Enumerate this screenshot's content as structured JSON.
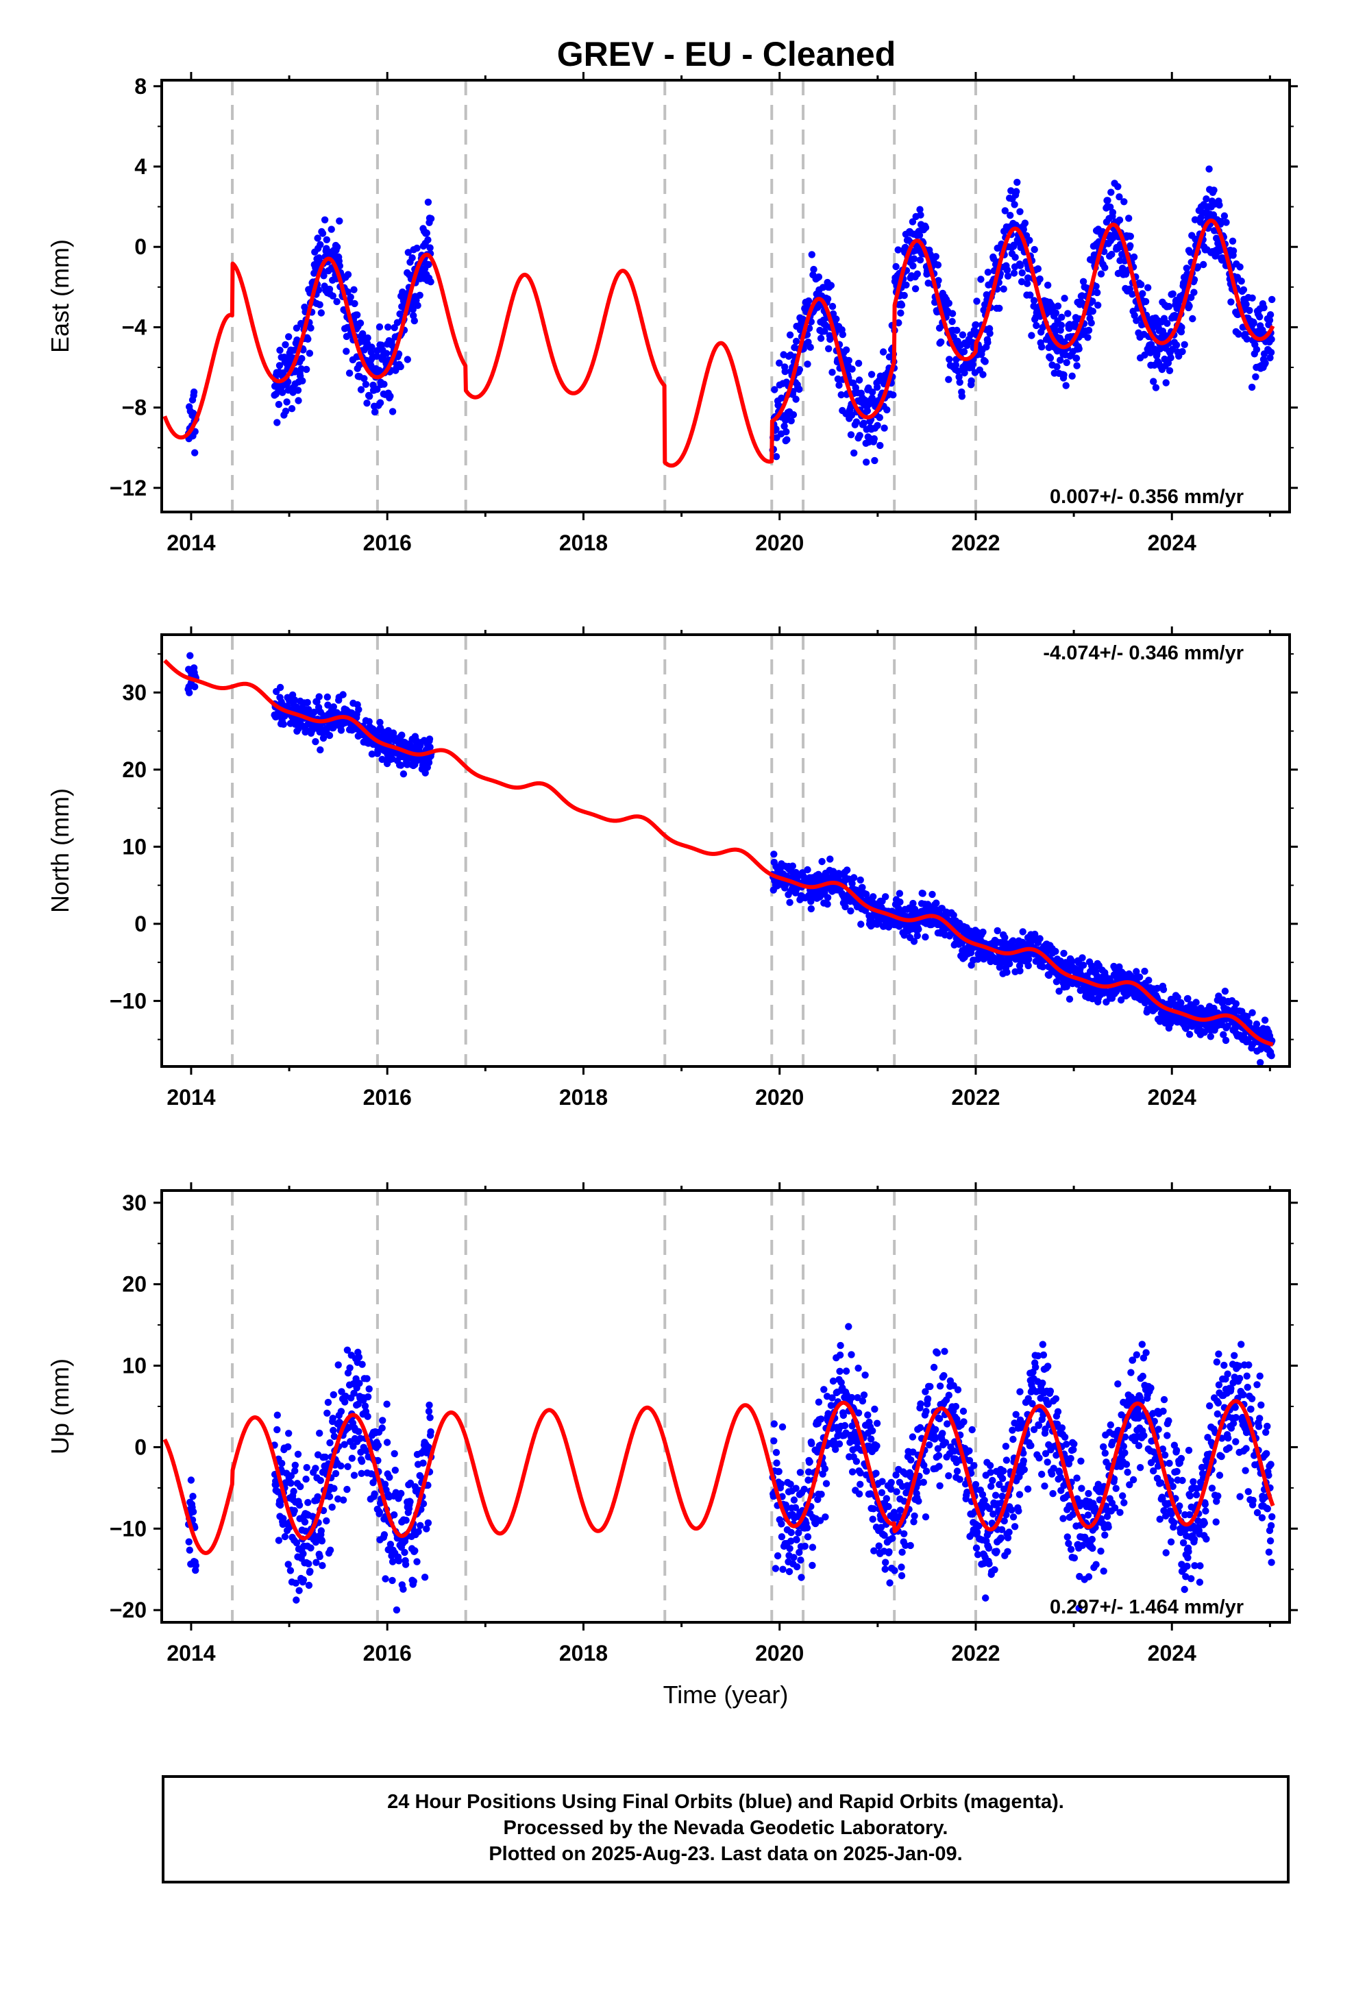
{
  "chart_data": {
    "title": "GREV  - EU - Cleaned",
    "type": "scatter",
    "x_range": [
      2013.7,
      2025.2
    ],
    "x_ticks": [
      2014,
      2016,
      2018,
      2020,
      2022,
      2024
    ],
    "xlabel": "Time (year)",
    "grid": false,
    "break_epochs": [
      2014.42,
      2015.9,
      2016.8,
      2018.83,
      2019.92,
      2020.24,
      2021.17,
      2022.0
    ],
    "data_segments": [
      [
        2013.97,
        2014.05
      ],
      [
        2014.85,
        2016.45
      ],
      [
        2019.93,
        2025.02
      ]
    ],
    "point_color": "#0000ff",
    "model_color": "#ff0000",
    "break_color": "#c0c0c0",
    "panels": [
      {
        "key": "east",
        "ylabel": "East (mm)",
        "y_range": [
          -13.2,
          8.3
        ],
        "y_ticks": [
          8,
          4,
          0,
          -4,
          -8,
          -12
        ],
        "y_tick_labels": [
          "8",
          "4",
          "0",
          "−4",
          "−8",
          "−12"
        ],
        "rate_text": "0.007+/- 0.356 mm/yr",
        "rate_position": "bottom-right",
        "model": {
          "trend": 0.2,
          "amplitude": 3.0,
          "phase_year": 2014.4,
          "semiannual": 0.3,
          "offsets": [
            [
              2014.42,
              2.6
            ],
            [
              2016.8,
              -1.2
            ],
            [
              2018.83,
              -3.8
            ],
            [
              2019.92,
              2.0
            ],
            [
              2021.17,
              2.7
            ],
            [
              2022.0,
              0.4
            ]
          ],
          "start_value": -8.0
        },
        "noise": 1.0
      },
      {
        "key": "north",
        "ylabel": "North (mm)",
        "y_range": [
          -18.5,
          37.5
        ],
        "y_ticks": [
          30,
          20,
          10,
          0,
          -10
        ],
        "y_tick_labels": [
          "30",
          "20",
          "10",
          "0",
          "−10"
        ],
        "rate_text": "-4.074+/- 0.346 mm/yr",
        "rate_position": "top-right",
        "model": {
          "trend": -4.3,
          "amplitude": 0.9,
          "phase_year": 2014.6,
          "semiannual": 0.3,
          "offsets": [],
          "start_value": 34.5
        },
        "noise": 1.1
      },
      {
        "key": "up",
        "ylabel": "Up (mm)",
        "y_range": [
          -21.5,
          31.5
        ],
        "y_ticks": [
          30,
          20,
          10,
          0,
          -10,
          -20
        ],
        "y_tick_labels": [
          "30",
          "20",
          "10",
          "0",
          "−10",
          "−20"
        ],
        "rate_text": "0.297+/- 1.464 mm/yr",
        "rate_position": "bottom-right",
        "model": {
          "trend": 0.3,
          "amplitude": 7.5,
          "phase_year": 2014.65,
          "semiannual": 0.0,
          "offsets": [
            [
              2014.42,
              1.5
            ],
            [
              2021.17,
              -1.0
            ]
          ],
          "start_value": 1.5
        },
        "noise": 3.8
      }
    ]
  },
  "footer": {
    "line1": "24 Hour Positions Using Final Orbits (blue) and Rapid Orbits (magenta).",
    "line2": "Processed by the Nevada Geodetic Laboratory.",
    "line3": "Plotted on 2025-Aug-23. Last data on 2025-Jan-09."
  }
}
